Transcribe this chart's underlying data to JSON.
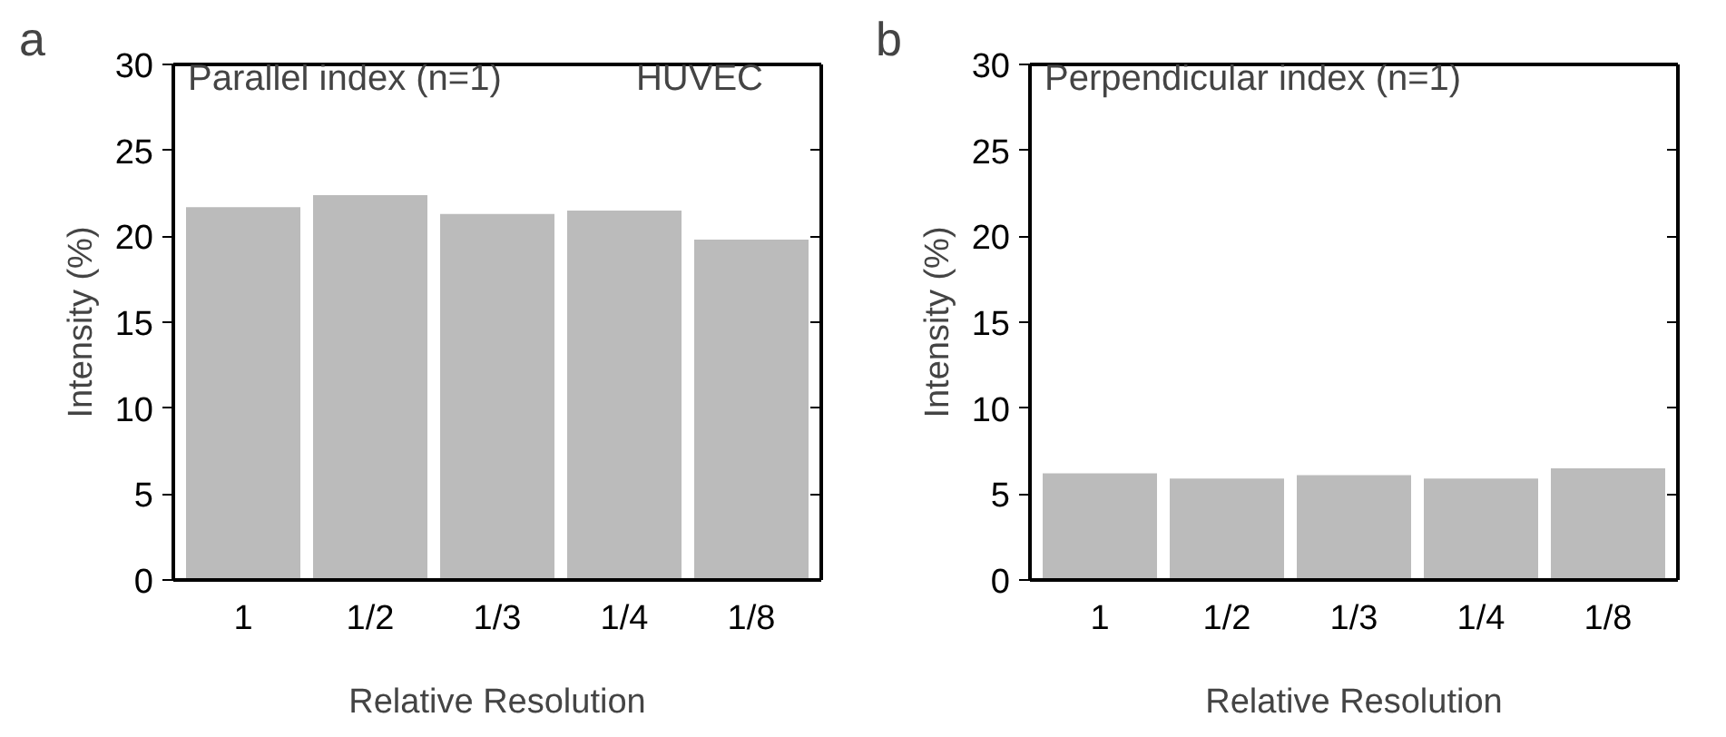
{
  "chart_data": [
    {
      "type": "bar",
      "title": "a",
      "xlabel": "Relative Resolution",
      "ylabel": "Intensity (%)",
      "categories": [
        "1",
        "1/2",
        "1/3",
        "1/4",
        "1/8"
      ],
      "values": [
        21.7,
        22.4,
        21.3,
        21.5,
        19.8
      ],
      "color": "#bbbbbb",
      "ylim": [
        0,
        30
      ],
      "yticks": [
        0,
        5,
        10,
        15,
        20,
        25,
        30
      ],
      "annotations": [
        "Parallel index (n=1)",
        "HUVEC"
      ]
    },
    {
      "type": "bar",
      "title": "b",
      "xlabel": "Relative Resolution",
      "ylabel": "Intensity (%)",
      "categories": [
        "1",
        "1/2",
        "1/3",
        "1/4",
        "1/8"
      ],
      "values": [
        6.2,
        5.9,
        6.1,
        5.9,
        6.5
      ],
      "color": "#bbbbbb",
      "ylim": [
        0,
        30
      ],
      "yticks": [
        0,
        5,
        10,
        15,
        20,
        25,
        30
      ],
      "annotations": [
        "Perpendicular index (n=1)"
      ]
    }
  ]
}
